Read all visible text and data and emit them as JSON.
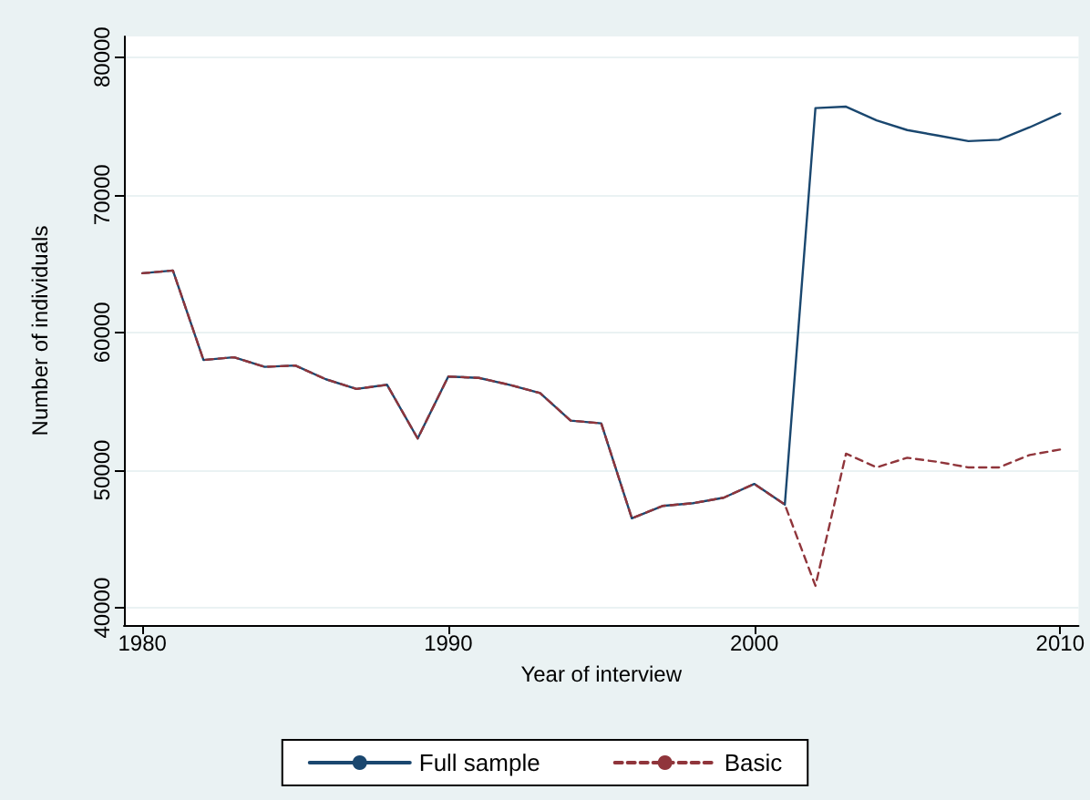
{
  "chart_data": {
    "type": "line",
    "xlabel": "Year of interview",
    "ylabel": "Number of individuals",
    "x": [
      1980,
      1981,
      1982,
      1983,
      1984,
      1985,
      1986,
      1987,
      1988,
      1989,
      1990,
      1991,
      1992,
      1993,
      1994,
      1995,
      1996,
      1997,
      1998,
      1999,
      2000,
      2001,
      2002,
      2003,
      2004,
      2005,
      2006,
      2007,
      2008,
      2009,
      2010
    ],
    "series": [
      {
        "name": "Full sample",
        "color": "#1a476f",
        "line_style": "solid",
        "values": [
          64300,
          64500,
          58000,
          58200,
          57500,
          57600,
          56600,
          55900,
          56200,
          52300,
          56800,
          56700,
          56200,
          55600,
          53600,
          53400,
          46500,
          47400,
          47600,
          48000,
          49000,
          47500,
          76300,
          76400,
          75400,
          74700,
          74300,
          73900,
          74000,
          74900,
          75900
        ]
      },
      {
        "name": "Basic",
        "color": "#90353b",
        "line_style": "dashed",
        "values": [
          64300,
          64500,
          58000,
          58200,
          57500,
          57600,
          56600,
          55900,
          56200,
          52300,
          56800,
          56700,
          56200,
          55600,
          53600,
          53400,
          46500,
          47400,
          47600,
          48000,
          49000,
          47500,
          41600,
          51200,
          50200,
          50900,
          50600,
          50200,
          50200,
          51100,
          51500
        ]
      }
    ],
    "xlim": [
      1979.4,
      2010.6
    ],
    "xticks": [
      1980,
      1990,
      2000,
      2010
    ],
    "ylim": [
      38750,
      81500
    ],
    "yticks": [
      40000,
      50000,
      60000,
      70000,
      80000
    ],
    "grid": "y",
    "legend": "bottom",
    "marker": "none"
  }
}
